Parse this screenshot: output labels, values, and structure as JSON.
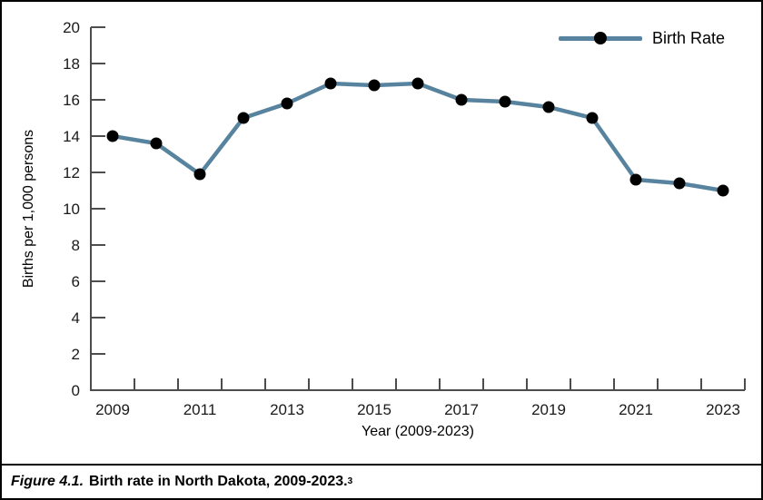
{
  "caption": {
    "figure_label": "Figure 4.1.",
    "text": "Birth rate in North Dakota, 2009-2023.",
    "footnote_ref": "3"
  },
  "legend": {
    "label": "Birth Rate"
  },
  "y_axis": {
    "label": "Births per 1,000 persons"
  },
  "x_axis": {
    "label": "Year (2009-2023)"
  },
  "colors": {
    "line": "#57839f",
    "marker": "#000000",
    "axis": "#4d4d4d",
    "text": "#1a1a1a"
  },
  "chart_data": {
    "type": "line",
    "x": [
      2009,
      2010,
      2011,
      2012,
      2013,
      2014,
      2015,
      2016,
      2017,
      2018,
      2019,
      2020,
      2021,
      2022,
      2023
    ],
    "series": [
      {
        "name": "Birth Rate",
        "values": [
          14.0,
          13.6,
          11.9,
          15.0,
          15.8,
          16.9,
          16.8,
          16.9,
          16.0,
          15.9,
          15.6,
          15.0,
          11.6,
          11.4,
          11.0
        ]
      }
    ],
    "x_tick_labels": [
      "2009",
      "2011",
      "2013",
      "2015",
      "2017",
      "2019",
      "2021",
      "2023"
    ],
    "y_ticks": [
      0,
      2,
      4,
      6,
      8,
      10,
      12,
      14,
      16,
      18,
      20
    ],
    "title": "",
    "xlabel": "Year (2009-2023)",
    "ylabel": "Births per 1,000 persons",
    "ylim": [
      0,
      20
    ],
    "grid": false,
    "legend_position": "top-right",
    "marker": "circle"
  }
}
